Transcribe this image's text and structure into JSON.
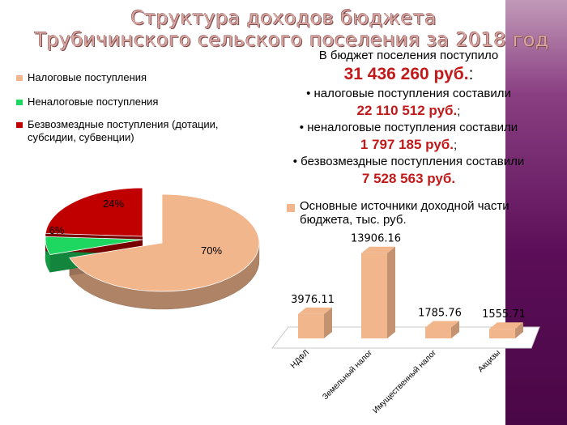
{
  "title": {
    "line1": "Структура доходов бюджета",
    "line2": "Трубичинского сельского поселения за 2018 год"
  },
  "summary": {
    "intro": "В бюджет поселения поступило",
    "total": "31 436 260 руб.",
    "total_suffix": ":",
    "tax_text": "•  налоговые поступления составили",
    "tax_amount": "22 110 512 руб.",
    "tax_suffix": ";",
    "nontax_text": "•  неналоговые поступления составили",
    "nontax_amount": "1 797 185 руб.",
    "nontax_suffix": ";",
    "grant_text": "•  безвозмездные поступления составили",
    "grant_amount": "7 528 563 руб."
  },
  "chart_data": [
    {
      "type": "pie",
      "legend_position": "top-left",
      "slices": [
        {
          "name": "Налоговые поступления",
          "value": 70,
          "label": "70%",
          "color": "#f2b68d"
        },
        {
          "name": "Неналоговые поступления",
          "value": 6,
          "label": "6%",
          "color": "#1ed760"
        },
        {
          "name": "Безвозмездные поступления (дотации, субсидии, субвенции)",
          "value": 24,
          "label": "24%",
          "color": "#c00000"
        }
      ]
    },
    {
      "type": "bar",
      "legend_position": "top",
      "series": [
        {
          "name": "Основные источники доходной части бюджета, тыс. руб.",
          "color": "#f2b68d",
          "values": [
            3976.11,
            13906.16,
            1785.76,
            1555.71
          ]
        }
      ],
      "categories": [
        "НДФЛ",
        "Земельный налог",
        "Имущественный налог",
        "Акцизы"
      ],
      "value_labels": [
        "3976.11",
        "13906.16",
        "1785.76",
        "1555.71"
      ],
      "ylim": [
        0,
        14000
      ]
    }
  ]
}
